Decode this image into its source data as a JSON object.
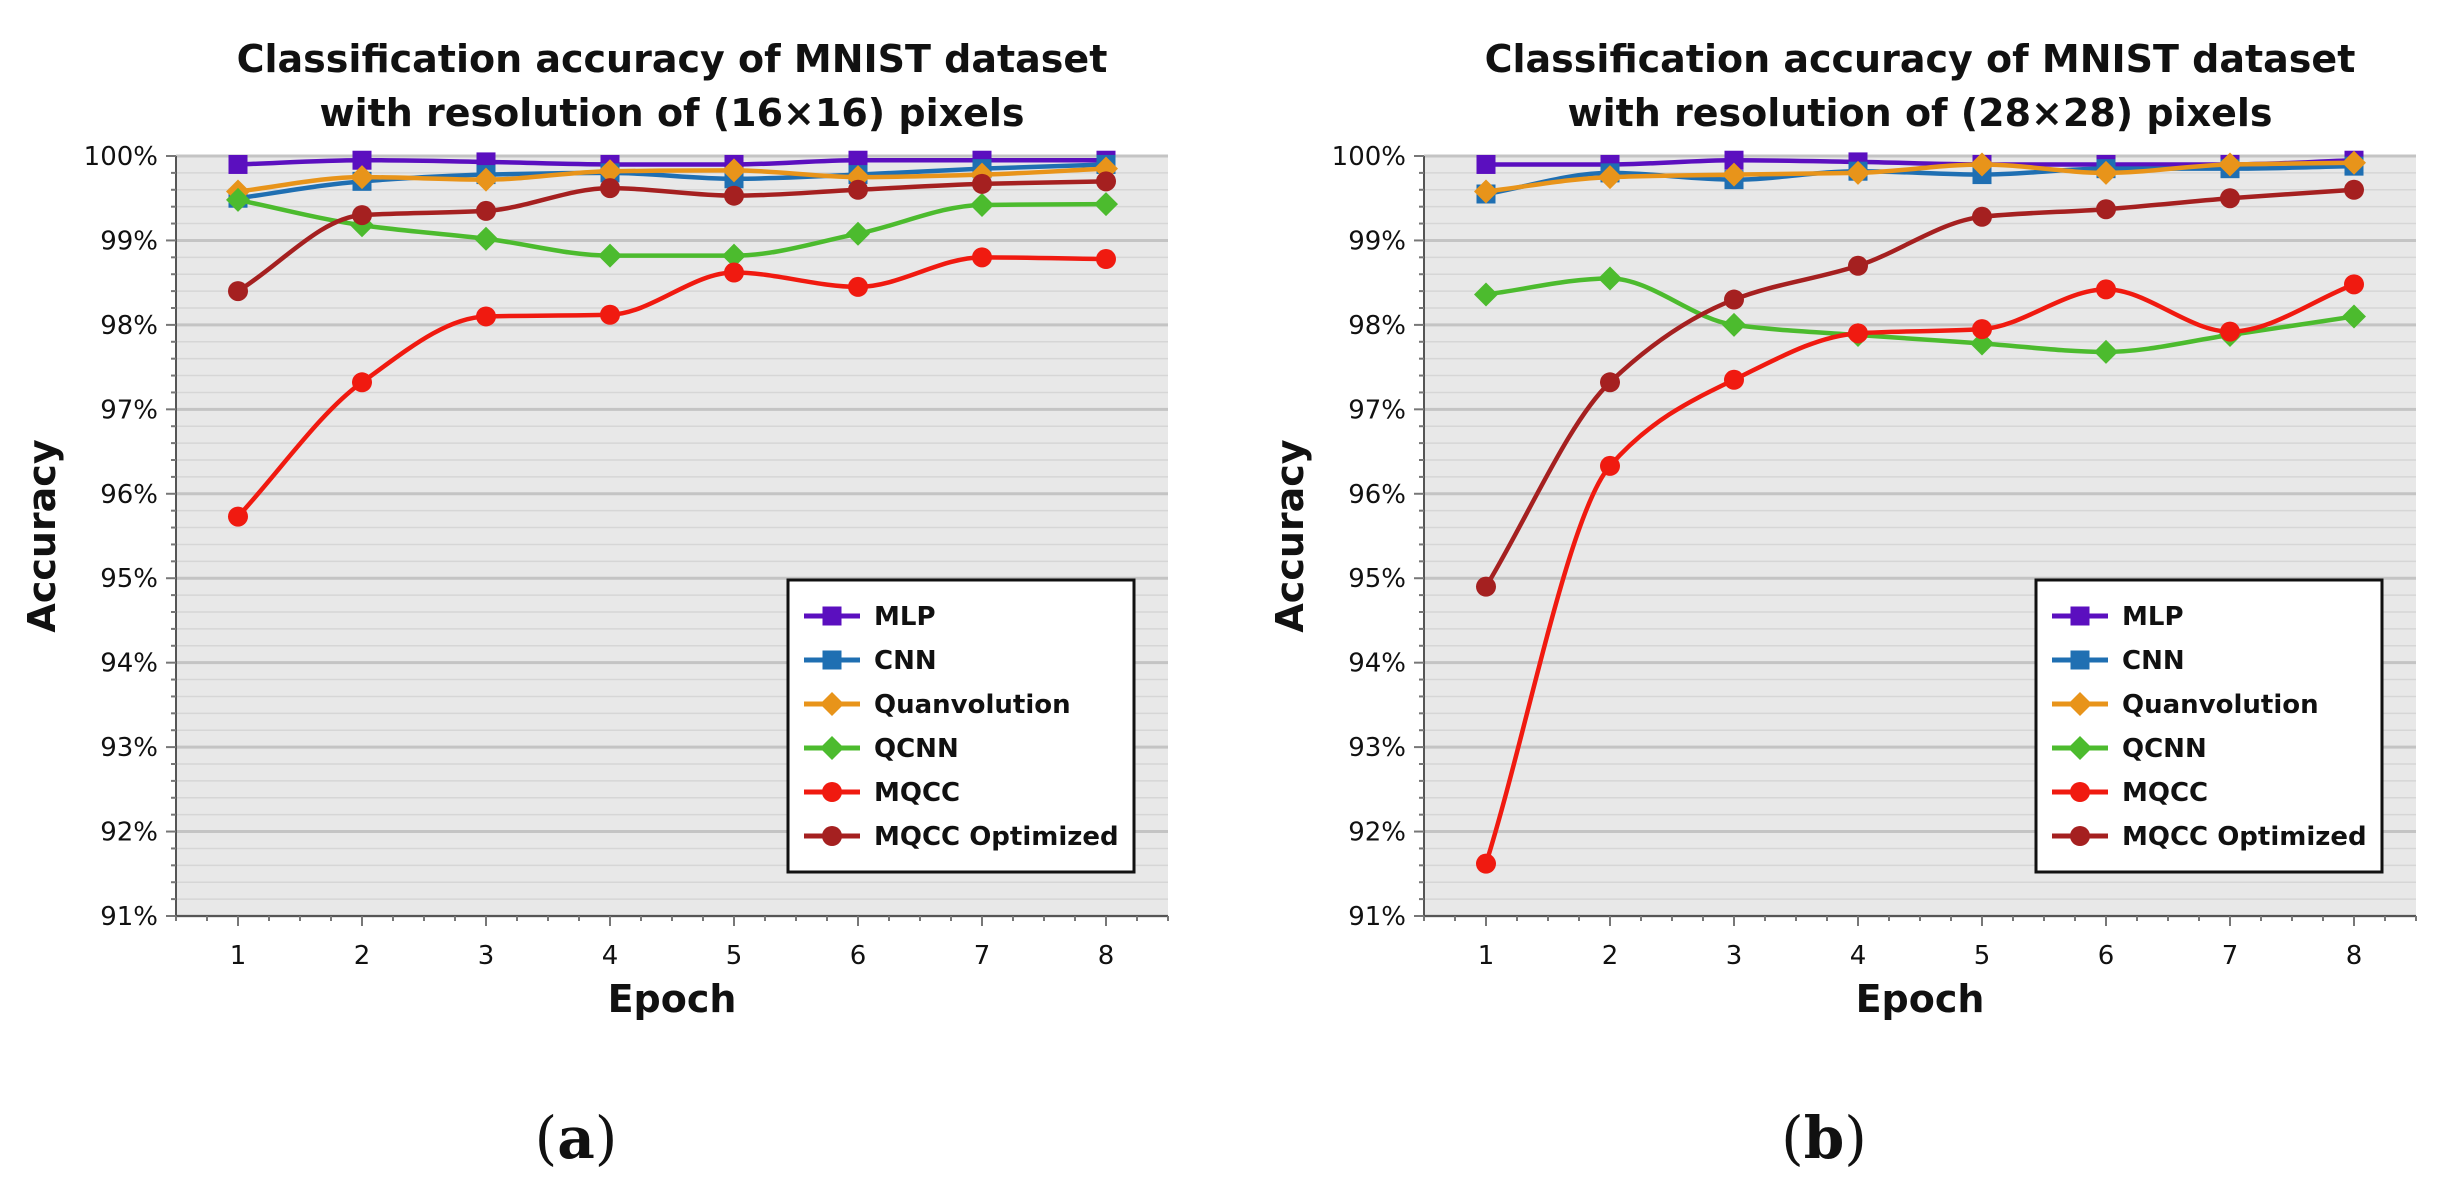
{
  "colors": {
    "MLP": "#5b0fbf",
    "CNN": "#1f6fb2",
    "Quanvolution": "#e8941a",
    "QCNN": "#4cbb2e",
    "MQCC": "#f01a10",
    "MQCC Optimized": "#a52020",
    "plot_background": "#e8e8e8",
    "grid_major": "#c4c4c4",
    "grid_minor": "#d6d6d6"
  },
  "markers": {
    "MLP": "square",
    "CNN": "square",
    "Quanvolution": "diamond",
    "QCNN": "diamond",
    "MQCC": "circle",
    "MQCC Optimized": "circle"
  },
  "chart_data": [
    {
      "type": "line",
      "panel_label": {
        "open": "(",
        "letter": "a",
        "close": ")"
      },
      "title_lines": [
        "Classification accuracy of MNIST dataset",
        "with resolution of (16×16) pixels"
      ],
      "xlabel": "Epoch",
      "ylabel": "Accuracy",
      "x": [
        1,
        2,
        3,
        4,
        5,
        6,
        7,
        8
      ],
      "xlim": [
        0.5,
        8.5
      ],
      "ylim": [
        91,
        100
      ],
      "yticks": [
        91,
        92,
        93,
        94,
        95,
        96,
        97,
        98,
        99,
        100
      ],
      "ytick_labels": [
        "91%",
        "92%",
        "93%",
        "94%",
        "95%",
        "96%",
        "97%",
        "98%",
        "99%",
        "100%"
      ],
      "xtick_labels": [
        "1",
        "2",
        "3",
        "4",
        "5",
        "6",
        "7",
        "8"
      ],
      "grid": true,
      "legend_position": "bottom-right",
      "series": [
        {
          "name": "MLP",
          "values": [
            99.9,
            99.95,
            99.93,
            99.9,
            99.9,
            99.95,
            99.95,
            99.95
          ]
        },
        {
          "name": "CNN",
          "values": [
            99.5,
            99.7,
            99.78,
            99.8,
            99.73,
            99.78,
            99.85,
            99.9
          ]
        },
        {
          "name": "Quanvolution",
          "values": [
            99.58,
            99.75,
            99.72,
            99.82,
            99.83,
            99.75,
            99.78,
            99.85
          ]
        },
        {
          "name": "QCNN",
          "values": [
            99.48,
            99.18,
            99.02,
            98.82,
            98.82,
            99.08,
            99.42,
            99.43
          ]
        },
        {
          "name": "MQCC",
          "values": [
            95.73,
            97.32,
            98.1,
            98.12,
            98.62,
            98.45,
            98.8,
            98.78
          ]
        },
        {
          "name": "MQCC Optimized",
          "values": [
            98.4,
            99.3,
            99.35,
            99.62,
            99.53,
            99.6,
            99.67,
            99.7
          ]
        }
      ]
    },
    {
      "type": "line",
      "panel_label": {
        "open": "(",
        "letter": "b",
        "close": ")"
      },
      "title_lines": [
        "Classification accuracy of MNIST dataset",
        "with resolution of (28×28) pixels"
      ],
      "xlabel": "Epoch",
      "ylabel": "Accuracy",
      "x": [
        1,
        2,
        3,
        4,
        5,
        6,
        7,
        8
      ],
      "xlim": [
        0.5,
        8.5
      ],
      "ylim": [
        91,
        100
      ],
      "yticks": [
        91,
        92,
        93,
        94,
        95,
        96,
        97,
        98,
        99,
        100
      ],
      "ytick_labels": [
        "91%",
        "92%",
        "93%",
        "94%",
        "95%",
        "96%",
        "97%",
        "98%",
        "99%",
        "100%"
      ],
      "xtick_labels": [
        "1",
        "2",
        "3",
        "4",
        "5",
        "6",
        "7",
        "8"
      ],
      "grid": true,
      "legend_position": "bottom-right",
      "series": [
        {
          "name": "MLP",
          "values": [
            99.9,
            99.9,
            99.95,
            99.93,
            99.9,
            99.9,
            99.9,
            99.95
          ]
        },
        {
          "name": "CNN",
          "values": [
            99.55,
            99.8,
            99.72,
            99.82,
            99.78,
            99.85,
            99.85,
            99.88
          ]
        },
        {
          "name": "Quanvolution",
          "values": [
            99.58,
            99.75,
            99.78,
            99.8,
            99.9,
            99.8,
            99.9,
            99.92
          ]
        },
        {
          "name": "QCNN",
          "values": [
            98.36,
            98.55,
            98.0,
            97.88,
            97.78,
            97.68,
            97.88,
            98.1
          ]
        },
        {
          "name": "MQCC",
          "values": [
            91.62,
            96.33,
            97.35,
            97.9,
            97.95,
            98.42,
            97.92,
            98.48
          ]
        },
        {
          "name": "MQCC Optimized",
          "values": [
            94.9,
            97.32,
            98.3,
            98.7,
            99.28,
            99.37,
            99.5,
            99.6
          ]
        }
      ]
    }
  ]
}
